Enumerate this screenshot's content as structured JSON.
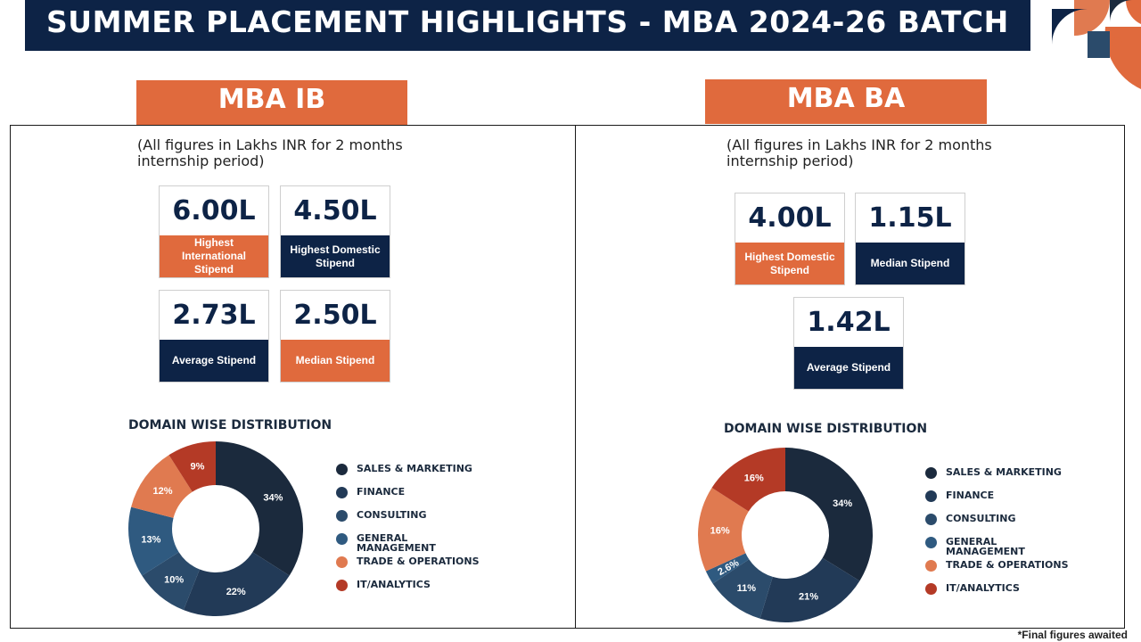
{
  "header": {
    "title": "SUMMER PLACEMENT HIGHLIGHTS - MBA 2024-26 BATCH"
  },
  "colors": {
    "navy": "#0d2346",
    "orange": "#e06a3d",
    "sales_marketing": "#1b2a3d",
    "finance": "#223a57",
    "consulting": "#2b4b6b",
    "general_management": "#2f5a80",
    "trade_operations": "#e07a50",
    "it_analytics": "#b43a26"
  },
  "ib": {
    "tab": "MBA IB",
    "note": "(All figures in Lakhs INR for 2 months\ninternship period)",
    "stats": [
      {
        "value": "6.00L",
        "label": "Highest International Stipend",
        "color": "orange"
      },
      {
        "value": "4.50L",
        "label": "Highest Domestic Stipend",
        "color": "navy"
      },
      {
        "value": "2.73L",
        "label": "Average Stipend",
        "color": "navy"
      },
      {
        "value": "2.50L",
        "label": "Median Stipend",
        "color": "orange"
      }
    ],
    "domain_title": "DOMAIN WISE DISTRIBUTION"
  },
  "ba": {
    "tab": "MBA BA",
    "note": "(All figures in Lakhs INR for 2 months\ninternship period)",
    "stats": [
      {
        "value": "4.00L",
        "label": "Highest Domestic Stipend",
        "color": "orange"
      },
      {
        "value": "1.15L",
        "label": "Median Stipend",
        "color": "navy"
      },
      {
        "value": "1.42L",
        "label": "Average Stipend",
        "color": "navy"
      }
    ],
    "domain_title": "DOMAIN WISE DISTRIBUTION"
  },
  "legend": [
    {
      "label": "SALES & MARKETING",
      "color": "#1b2a3d"
    },
    {
      "label": "FINANCE",
      "color": "#223a57"
    },
    {
      "label": "CONSULTING",
      "color": "#2b4b6b"
    },
    {
      "label": "GENERAL MANAGEMENT",
      "color": "#2f5a80"
    },
    {
      "label": "TRADE & OPERATIONS",
      "color": "#e07a50"
    },
    {
      "label": "IT/ANALYTICS",
      "color": "#b43a26"
    }
  ],
  "footnote": "*Final figures awaited",
  "chart_data": [
    {
      "type": "pie",
      "title": "DOMAIN WISE DISTRIBUTION",
      "categories": [
        "SALES & MARKETING",
        "FINANCE",
        "CONSULTING",
        "GENERAL MANAGEMENT",
        "TRADE & OPERATIONS",
        "IT/ANALYTICS"
      ],
      "values": [
        34,
        22,
        10,
        13,
        12,
        9
      ],
      "labels": [
        "34%",
        "22%",
        "10%",
        "13%",
        "12%",
        "9%"
      ],
      "colors": [
        "#1b2a3d",
        "#223a57",
        "#2b4b6b",
        "#2f5a80",
        "#e07a50",
        "#b43a26"
      ],
      "donut": true
    },
    {
      "type": "pie",
      "title": "DOMAIN WISE DISTRIBUTION",
      "categories": [
        "SALES & MARKETING",
        "FINANCE",
        "CONSULTING",
        "GENERAL MANAGEMENT",
        "TRADE & OPERATIONS",
        "IT/ANALYTICS"
      ],
      "values": [
        34,
        21,
        11,
        2.6,
        16,
        16
      ],
      "labels": [
        "34%",
        "21%",
        "11%",
        "2.6%",
        "16%",
        "16%"
      ],
      "colors": [
        "#1b2a3d",
        "#223a57",
        "#2b4b6b",
        "#2f5a80",
        "#e07a50",
        "#b43a26"
      ],
      "donut": true
    }
  ]
}
